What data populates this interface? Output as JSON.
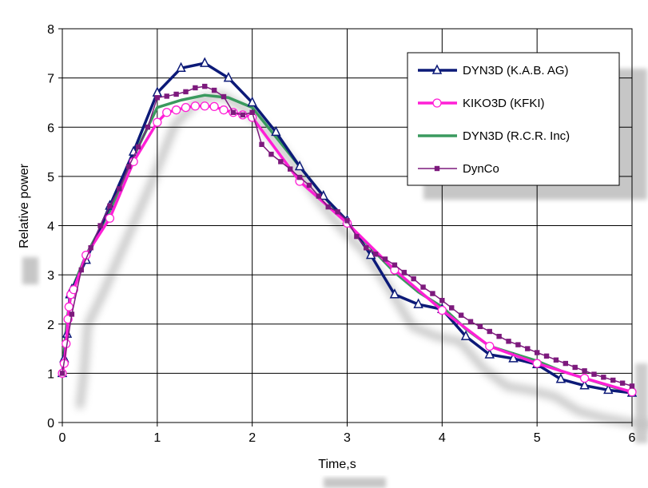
{
  "chart_data": {
    "type": "line",
    "xlabel": "Time,s",
    "ylabel": "Relative power",
    "xlim": [
      0,
      6
    ],
    "ylim": [
      0,
      8
    ],
    "xticks": [
      "0",
      "1",
      "2",
      "3",
      "4",
      "5",
      "6"
    ],
    "yticks": [
      "0",
      "1",
      "2",
      "3",
      "4",
      "5",
      "6",
      "7",
      "8"
    ],
    "grid": true,
    "legend_position": "top-right",
    "series": [
      {
        "name": "DYN3D (K.A.B. AG)",
        "color": "#0c1a78",
        "marker": "triangle-open",
        "x": [
          0,
          0.02,
          0.05,
          0.08,
          0.1,
          0.25,
          0.5,
          0.75,
          1.0,
          1.25,
          1.5,
          1.75,
          2.0,
          2.25,
          2.5,
          2.75,
          3.0,
          3.25,
          3.5,
          3.75,
          4.0,
          4.25,
          4.5,
          4.75,
          5.0,
          5.25,
          5.5,
          5.75,
          6.0
        ],
        "y": [
          1.0,
          1.3,
          1.8,
          2.6,
          2.7,
          3.3,
          4.4,
          5.5,
          6.7,
          7.2,
          7.3,
          7.0,
          6.5,
          5.9,
          5.2,
          4.6,
          4.1,
          3.4,
          2.6,
          2.4,
          2.3,
          1.75,
          1.38,
          1.3,
          1.18,
          0.88,
          0.75,
          0.66,
          0.6
        ]
      },
      {
        "name": "KIKO3D (KFKI)",
        "color": "#ff1fd6",
        "marker": "circle-open",
        "x": [
          0,
          0.02,
          0.04,
          0.06,
          0.07,
          0.09,
          0.12,
          0.25,
          0.5,
          0.75,
          1.0,
          1.1,
          1.2,
          1.3,
          1.4,
          1.5,
          1.6,
          1.7,
          1.8,
          1.9,
          2.0,
          2.5,
          3.0,
          3.5,
          4.0,
          4.5,
          5.0,
          5.5,
          6.0
        ],
        "y": [
          1.0,
          1.2,
          1.6,
          2.1,
          2.35,
          2.6,
          2.7,
          3.4,
          4.15,
          5.3,
          6.1,
          6.3,
          6.35,
          6.4,
          6.43,
          6.43,
          6.42,
          6.35,
          6.3,
          6.25,
          6.2,
          4.9,
          4.05,
          3.1,
          2.28,
          1.55,
          1.2,
          0.9,
          0.62
        ]
      },
      {
        "name": "DYN3D (R.C.R. Inc)",
        "color": "#3a9a5e",
        "marker": "none",
        "x": [
          0,
          0.05,
          0.1,
          0.25,
          0.5,
          0.75,
          1.0,
          1.25,
          1.5,
          1.75,
          2.0,
          2.25,
          2.5,
          2.75,
          3.0,
          3.25,
          3.5,
          3.75,
          4.0,
          4.25,
          4.5,
          4.75,
          5.0,
          5.25,
          5.5,
          5.75,
          6.0
        ],
        "y": [
          1.0,
          2.1,
          2.7,
          3.4,
          4.3,
          5.4,
          6.4,
          6.55,
          6.65,
          6.6,
          6.4,
          5.8,
          5.2,
          4.6,
          4.05,
          3.55,
          3.05,
          2.65,
          2.35,
          1.9,
          1.55,
          1.4,
          1.25,
          1.05,
          0.9,
          0.75,
          0.6
        ]
      },
      {
        "name": "DynCo",
        "color": "#7d1a7d",
        "marker": "square-filled",
        "x": [
          0.0,
          0.1,
          0.2,
          0.3,
          0.4,
          0.5,
          0.6,
          0.7,
          0.8,
          0.9,
          1.0,
          1.1,
          1.2,
          1.3,
          1.4,
          1.5,
          1.6,
          1.7,
          1.8,
          1.9,
          2.0,
          2.1,
          2.2,
          2.3,
          2.4,
          2.5,
          2.6,
          2.7,
          2.8,
          2.9,
          3.0,
          3.1,
          3.2,
          3.3,
          3.4,
          3.5,
          3.6,
          3.7,
          3.8,
          3.9,
          4.0,
          4.1,
          4.2,
          4.3,
          4.4,
          4.5,
          4.6,
          4.7,
          4.8,
          4.9,
          5.0,
          5.1,
          5.2,
          5.3,
          5.4,
          5.5,
          5.6,
          5.7,
          5.8,
          5.9,
          6.0
        ],
        "y": [
          1.0,
          2.2,
          3.1,
          3.55,
          4.0,
          4.4,
          4.75,
          5.2,
          5.6,
          6.0,
          6.6,
          6.63,
          6.67,
          6.72,
          6.8,
          6.83,
          6.75,
          6.62,
          6.3,
          6.25,
          6.3,
          5.65,
          5.45,
          5.3,
          5.15,
          4.98,
          4.82,
          4.6,
          4.38,
          4.28,
          4.1,
          3.78,
          3.55,
          3.42,
          3.32,
          3.2,
          3.05,
          2.92,
          2.75,
          2.62,
          2.48,
          2.33,
          2.18,
          2.05,
          1.95,
          1.85,
          1.75,
          1.65,
          1.58,
          1.5,
          1.42,
          1.35,
          1.27,
          1.2,
          1.12,
          1.05,
          0.98,
          0.92,
          0.86,
          0.8,
          0.74
        ]
      }
    ]
  }
}
